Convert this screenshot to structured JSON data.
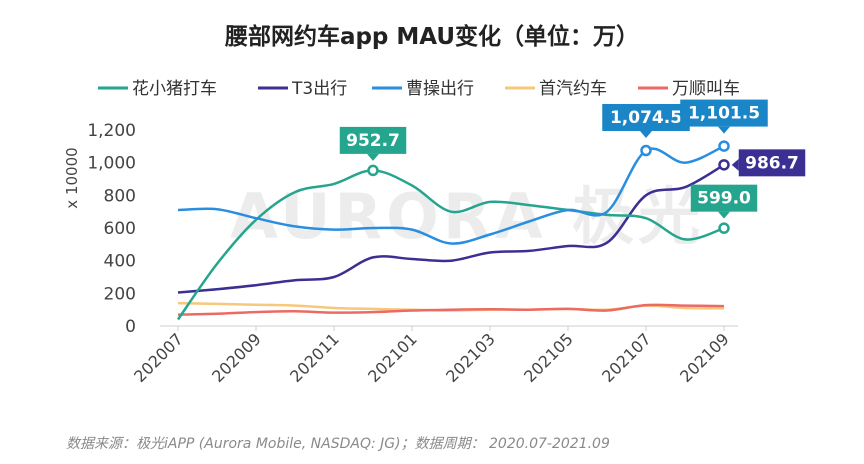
{
  "chart_data": {
    "type": "line",
    "title": "腰部网约车app MAU变化（单位：万）",
    "ylabel": "x 10000",
    "xlabel": "",
    "ylim": [
      0,
      1200
    ],
    "yticks": [
      0,
      200,
      400,
      600,
      800,
      1000,
      1200
    ],
    "ytick_labels": [
      "0",
      "200",
      "400",
      "600",
      "800",
      "1,000",
      "1,200"
    ],
    "x": [
      "202007",
      "202008",
      "202009",
      "202010",
      "202011",
      "202012",
      "202101",
      "202102",
      "202103",
      "202104",
      "202105",
      "202106",
      "202107",
      "202108",
      "202109"
    ],
    "x_tick_labels": [
      "202007",
      "202009",
      "202011",
      "202101",
      "202103",
      "202105",
      "202107",
      "202109"
    ],
    "series": [
      {
        "name": "花小猪打车",
        "color": "#26a58e",
        "values": [
          40,
          380,
          650,
          820,
          870,
          952.7,
          860,
          700,
          760,
          740,
          710,
          680,
          660,
          530,
          599.0
        ]
      },
      {
        "name": "T3出行",
        "color": "#3b2f94",
        "values": [
          205,
          225,
          250,
          280,
          300,
          420,
          410,
          400,
          450,
          460,
          490,
          510,
          800,
          850,
          986.7
        ]
      },
      {
        "name": "曹操出行",
        "color": "#2a8ee0",
        "values": [
          710,
          715,
          660,
          610,
          590,
          600,
          590,
          505,
          560,
          640,
          710,
          700,
          1074.5,
          1000,
          1101.5
        ]
      },
      {
        "name": "首汽约车",
        "color": "#f7c87a",
        "values": [
          140,
          135,
          130,
          125,
          110,
          105,
          100,
          95,
          100,
          100,
          105,
          100,
          125,
          110,
          108
        ]
      },
      {
        "name": "万顺叫车",
        "color": "#ec6a64",
        "values": [
          70,
          75,
          85,
          90,
          82,
          85,
          95,
          100,
          102,
          100,
          105,
          95,
          128,
          125,
          122
        ]
      }
    ],
    "annotations": [
      {
        "series": "花小猪打车",
        "x": "202012",
        "label": "952.7",
        "color": "#26a58e"
      },
      {
        "series": "曹操出行",
        "x": "202107",
        "label": "1,074.5",
        "color": "#1a86c8"
      },
      {
        "series": "曹操出行",
        "x": "202109",
        "label": "1,101.5",
        "color": "#1a86c8"
      },
      {
        "series": "T3出行",
        "x": "202109",
        "label": "986.7",
        "color": "#3b2f94"
      },
      {
        "series": "花小猪打车",
        "x": "202109",
        "label": "599.0",
        "color": "#26a58e"
      }
    ]
  },
  "watermark": "AURORA 极光",
  "source": "数据来源：极光iAPP (Aurora Mobile, NASDAQ: JG)；数据周期： 2020.07-2021.09"
}
